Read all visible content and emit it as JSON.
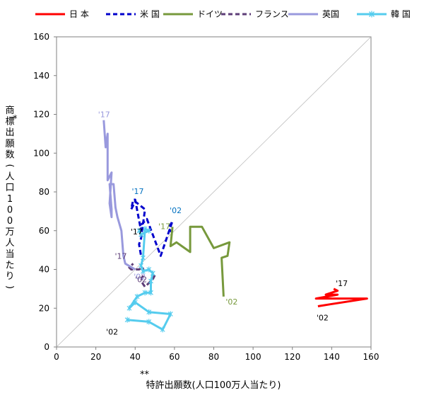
{
  "chart_data": {
    "type": "line",
    "title": "",
    "xlabel": "特許出願数(人口100万人当たり)",
    "xlabel_mark": "**",
    "ylabel": "商標出願数(人口100万人当たり)",
    "ylabel_mark": "*",
    "xlim": [
      0,
      160
    ],
    "ylim": [
      0,
      160
    ],
    "xticks": [
      0,
      20,
      40,
      60,
      80,
      100,
      120,
      140,
      160
    ],
    "yticks": [
      0,
      20,
      40,
      60,
      80,
      100,
      120,
      140,
      160
    ],
    "grid": false,
    "diagonal_reference": true,
    "legend": {
      "placement": "top",
      "entries": [
        {
          "label": "日 本",
          "color": "#ff0000",
          "style": "solid"
        },
        {
          "label": "米 国",
          "color": "#0000cc",
          "style": "dashed"
        },
        {
          "label": "ドイツ",
          "color": "#77993c",
          "style": "solid"
        },
        {
          "label": "フランス",
          "color": "#5e3e78",
          "style": "dashed"
        },
        {
          "label": "英国",
          "color": "#9999dd",
          "style": "solid"
        },
        {
          "label": "韓 国",
          "color": "#55ccee",
          "style": "solid-marker"
        }
      ]
    },
    "series": [
      {
        "name": "日 本",
        "color": "#ff0000",
        "dash": false,
        "marker": false,
        "points": [
          [
            133,
            21
          ],
          [
            139,
            22
          ],
          [
            158,
            25
          ],
          [
            132,
            25
          ],
          [
            143,
            27
          ],
          [
            137,
            27
          ],
          [
            143,
            29
          ],
          [
            141,
            30
          ]
        ]
      },
      {
        "name": "米 国",
        "color": "#0000cc",
        "dash": true,
        "marker": false,
        "points": [
          [
            59,
            59
          ],
          [
            57,
            61
          ],
          [
            59,
            65
          ],
          [
            53,
            47
          ],
          [
            46,
            66
          ],
          [
            43,
            63
          ],
          [
            43,
            60
          ],
          [
            40,
            76
          ],
          [
            39,
            76
          ],
          [
            38,
            71
          ],
          [
            40,
            75
          ],
          [
            45,
            71
          ],
          [
            43,
            56
          ],
          [
            42,
            53
          ],
          [
            43,
            47
          ]
        ]
      },
      {
        "name": "ドイツ",
        "color": "#77993c",
        "dash": false,
        "marker": false,
        "points": [
          [
            85,
            26
          ],
          [
            84,
            46
          ],
          [
            87,
            47
          ],
          [
            88,
            54
          ],
          [
            80,
            51
          ],
          [
            74,
            62
          ],
          [
            68,
            62
          ],
          [
            68,
            49
          ],
          [
            61,
            54
          ],
          [
            58,
            52
          ],
          [
            59,
            62
          ]
        ]
      },
      {
        "name": "フランス",
        "color": "#5e3e78",
        "dash": true,
        "marker": false,
        "points": [
          [
            50,
            37
          ],
          [
            49,
            35
          ],
          [
            45,
            31
          ],
          [
            43,
            34
          ],
          [
            44,
            37
          ],
          [
            44,
            41
          ],
          [
            42,
            40
          ],
          [
            38,
            40
          ],
          [
            37,
            41
          ],
          [
            39,
            43
          ]
        ]
      },
      {
        "name": "英国",
        "color": "#9999dd",
        "dash": false,
        "marker": false,
        "points": [
          [
            40,
            40
          ],
          [
            35,
            43
          ],
          [
            34,
            47
          ],
          [
            33,
            60
          ],
          [
            31,
            67
          ],
          [
            30,
            72
          ],
          [
            29,
            84
          ],
          [
            27,
            84
          ],
          [
            28,
            71
          ],
          [
            28,
            67
          ],
          [
            27,
            74
          ],
          [
            28,
            90
          ],
          [
            26,
            86
          ],
          [
            26,
            100
          ],
          [
            26,
            110
          ],
          [
            25,
            103
          ],
          [
            24,
            117
          ]
        ]
      },
      {
        "name": "韓 国",
        "color": "#55ccee",
        "dash": false,
        "marker": true,
        "points": [
          [
            36,
            14
          ],
          [
            47,
            13
          ],
          [
            54,
            9
          ],
          [
            58,
            17
          ],
          [
            47,
            18
          ],
          [
            40,
            23
          ],
          [
            37,
            20
          ],
          [
            41,
            26
          ],
          [
            45,
            28
          ],
          [
            48,
            28
          ],
          [
            48,
            34
          ],
          [
            49,
            38
          ],
          [
            47,
            40
          ],
          [
            44,
            39
          ],
          [
            43,
            42
          ],
          [
            44,
            46
          ],
          [
            45,
            61
          ],
          [
            47,
            60
          ],
          [
            43,
            58
          ],
          [
            42,
            60
          ]
        ]
      }
    ],
    "annotations": [
      {
        "text": "'17",
        "series": "英国",
        "x": 24,
        "y": 117,
        "color": "#9999dd"
      },
      {
        "text": "'17",
        "series": "米 国",
        "x": 39,
        "y": 76,
        "color": "#0070c0"
      },
      {
        "text": "'02",
        "series": "米 国",
        "x": 59,
        "y": 65,
        "color": "#0070c0"
      },
      {
        "text": "'17",
        "series": "ドイツ",
        "x": 59,
        "y": 62,
        "color": "#77993c"
      },
      {
        "text": "'17",
        "series": "韓 国",
        "x": 42,
        "y": 60,
        "color": "#000000"
      },
      {
        "text": "'17",
        "series": "フランス",
        "x": 39,
        "y": 43,
        "color": "#5e3e78"
      },
      {
        "text": "'02",
        "series": "英国",
        "x": 40,
        "y": 40,
        "color": "#9999dd"
      },
      {
        "text": "'02",
        "series": "フランス",
        "x": 50,
        "y": 37,
        "color": "#5e3e78"
      },
      {
        "text": "'02",
        "series": "ドイツ",
        "x": 85,
        "y": 26,
        "color": "#77993c"
      },
      {
        "text": "'02",
        "series": "韓 国",
        "x": 36,
        "y": 14,
        "color": "#000000"
      },
      {
        "text": "'17",
        "series": "日 本",
        "x": 141,
        "y": 30,
        "color": "#000000"
      },
      {
        "text": "'02",
        "series": "日 本",
        "x": 133,
        "y": 21,
        "color": "#000000"
      }
    ]
  }
}
